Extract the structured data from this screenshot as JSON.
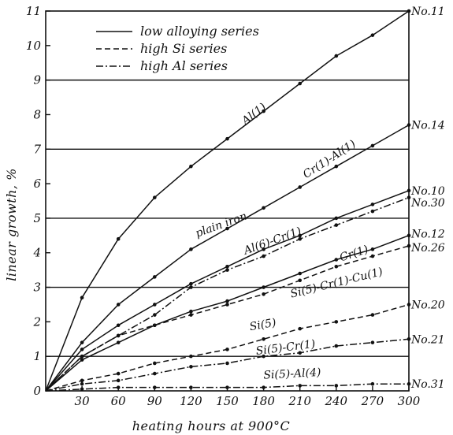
{
  "chart_data": {
    "type": "line",
    "xlabel": "heating hours at 900°C",
    "ylabel": "linear growth, %",
    "xlim": [
      0,
      300
    ],
    "ylim": [
      0,
      11
    ],
    "x_ticks": [
      "30",
      "60",
      "90",
      "120",
      "150",
      "180",
      "210",
      "240",
      "270",
      "300"
    ],
    "y_ticks": [
      "0",
      "1",
      "2",
      "3",
      "4",
      "5",
      "6",
      "7",
      "8",
      "9",
      "10",
      "11"
    ],
    "legend_position": "top-left",
    "legend": [
      {
        "label": "low alloying series",
        "style": "solid"
      },
      {
        "label": "high Si series",
        "style": "dashed"
      },
      {
        "label": "high Al series",
        "style": "dashdot"
      }
    ],
    "series": [
      {
        "name": "Al(1)",
        "end_label": "No.11",
        "style": "solid",
        "x": [
          0,
          30,
          60,
          90,
          120,
          150,
          180,
          210,
          240,
          270,
          300
        ],
        "y": [
          0,
          2.7,
          4.4,
          5.6,
          6.5,
          7.3,
          8.1,
          8.9,
          9.7,
          10.3,
          11.0
        ]
      },
      {
        "name": "Cr(1)-Al(1)",
        "end_label": "No.14",
        "style": "solid",
        "x": [
          0,
          30,
          60,
          90,
          120,
          150,
          180,
          210,
          240,
          270,
          300
        ],
        "y": [
          0,
          1.4,
          2.5,
          3.3,
          4.1,
          4.7,
          5.3,
          5.9,
          6.5,
          7.1,
          7.7
        ]
      },
      {
        "name": "plain iron",
        "end_label": "No.10",
        "style": "solid",
        "x": [
          0,
          30,
          60,
          90,
          120,
          150,
          180,
          210,
          240,
          270,
          300
        ],
        "y": [
          0,
          1.2,
          1.9,
          2.5,
          3.1,
          3.6,
          4.1,
          4.5,
          5.0,
          5.4,
          5.8
        ]
      },
      {
        "name": "Al(6)-Cr(1)",
        "end_label": "No.30",
        "style": "dashdot",
        "x": [
          0,
          30,
          60,
          90,
          120,
          150,
          180,
          210,
          240,
          270,
          300
        ],
        "y": [
          0,
          1.0,
          1.6,
          2.2,
          3.0,
          3.5,
          3.9,
          4.4,
          4.8,
          5.2,
          5.6
        ]
      },
      {
        "name": "Cr(1)",
        "end_label": "No.12",
        "style": "solid",
        "x": [
          0,
          30,
          60,
          90,
          120,
          150,
          180,
          210,
          240,
          270,
          300
        ],
        "y": [
          0,
          0.9,
          1.4,
          1.9,
          2.3,
          2.6,
          3.0,
          3.4,
          3.8,
          4.1,
          4.5
        ]
      },
      {
        "name": "Si(5)-Cr(1)-Cu(1)",
        "end_label": "No.26",
        "style": "dashed",
        "x": [
          0,
          30,
          60,
          90,
          120,
          150,
          180,
          210,
          240,
          270,
          300
        ],
        "y": [
          0,
          1.0,
          1.6,
          1.9,
          2.2,
          2.5,
          2.8,
          3.2,
          3.6,
          3.9,
          4.2
        ]
      },
      {
        "name": "Si(5)",
        "end_label": "No.20",
        "style": "dashed",
        "x": [
          0,
          30,
          60,
          90,
          120,
          150,
          180,
          210,
          240,
          270,
          300
        ],
        "y": [
          0,
          0.3,
          0.5,
          0.8,
          1.0,
          1.2,
          1.5,
          1.8,
          2.0,
          2.2,
          2.5
        ]
      },
      {
        "name": "Si(5)-Cr(1)",
        "end_label": "No.21",
        "style": "dashdot",
        "x": [
          0,
          30,
          60,
          90,
          120,
          150,
          180,
          210,
          240,
          270,
          300
        ],
        "y": [
          0,
          0.2,
          0.3,
          0.5,
          0.7,
          0.8,
          1.0,
          1.1,
          1.3,
          1.4,
          1.5
        ]
      },
      {
        "name": "Si(5)-Al(4)",
        "end_label": "No.31",
        "style": "dashdot",
        "x": [
          0,
          30,
          60,
          90,
          120,
          150,
          180,
          210,
          240,
          270,
          300
        ],
        "y": [
          0,
          0.05,
          0.1,
          0.1,
          0.1,
          0.1,
          0.1,
          0.15,
          0.15,
          0.2,
          0.2
        ]
      }
    ]
  }
}
